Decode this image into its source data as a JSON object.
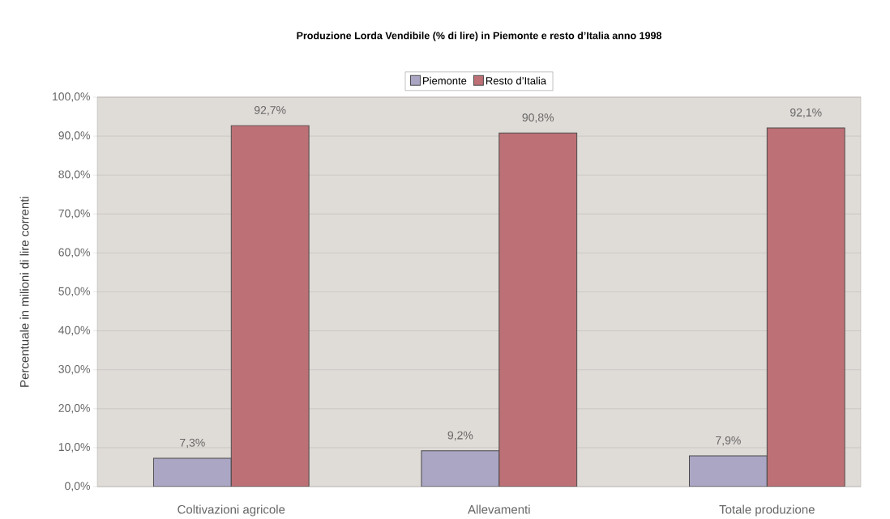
{
  "chart_data": {
    "type": "bar",
    "title": "Produzione Lorda Vendibile (% di lire) in Piemonte e resto d’Italia anno 1998",
    "ylabel": "Percentuale in milioni di lire correnti",
    "categories": [
      "Coltivazioni agricole",
      "Allevamenti",
      "Totale produzione"
    ],
    "series": [
      {
        "name": "Piemonte",
        "color": "#aba6c4",
        "values": [
          7.3,
          9.2,
          7.9
        ],
        "value_labels": [
          "7,3%",
          "9,2%",
          "7,9%"
        ]
      },
      {
        "name": "Resto d’Italia",
        "color": "#bd7075",
        "values": [
          92.7,
          90.8,
          92.1
        ],
        "value_labels": [
          "92,7%",
          "90,8%",
          "92,1%"
        ]
      }
    ],
    "ylim": [
      0,
      100
    ],
    "yticks": [
      {
        "value": 0,
        "label": "0,0%"
      },
      {
        "value": 10,
        "label": "10,0%"
      },
      {
        "value": 20,
        "label": "20,0%"
      },
      {
        "value": 30,
        "label": "30,0%"
      },
      {
        "value": 40,
        "label": "40,0%"
      },
      {
        "value": 50,
        "label": "50,0%"
      },
      {
        "value": 60,
        "label": "60,0%"
      },
      {
        "value": 70,
        "label": "70,0%"
      },
      {
        "value": 80,
        "label": "80,0%"
      },
      {
        "value": 90,
        "label": "90,0%"
      },
      {
        "value": 100,
        "label": "100,0%"
      }
    ],
    "grid": "y",
    "legend": "top"
  }
}
